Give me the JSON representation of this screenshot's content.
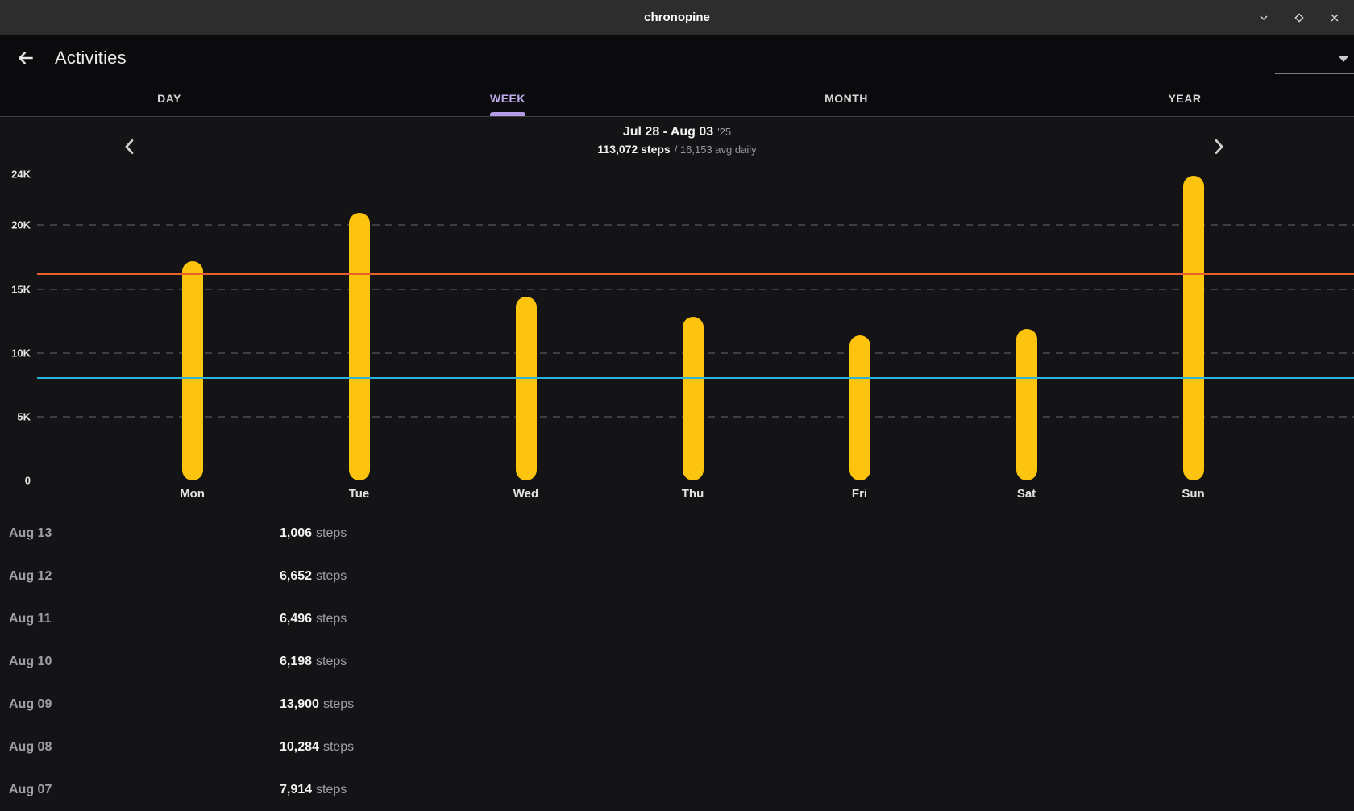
{
  "window": {
    "title": "chronopine"
  },
  "header": {
    "title": "Activities"
  },
  "tabs": [
    {
      "label": "DAY",
      "active": false
    },
    {
      "label": "WEEK",
      "active": true
    },
    {
      "label": "MONTH",
      "active": false
    },
    {
      "label": "YEAR",
      "active": false
    }
  ],
  "period": {
    "date_range": "Jul 28 - Aug 03",
    "year": "'25",
    "total": "113,072 steps",
    "avg": "/ 16,153 avg daily"
  },
  "chart_data": {
    "type": "bar",
    "title": "Jul 28 - Aug 03 '25 steps",
    "categories": [
      "Mon",
      "Tue",
      "Wed",
      "Thu",
      "Fri",
      "Sat",
      "Sun"
    ],
    "values": [
      17200,
      21000,
      14400,
      12800,
      11400,
      11900,
      23900
    ],
    "xlabel": "",
    "ylabel": "steps",
    "ylim": [
      0,
      24000
    ],
    "yticks": [
      {
        "value": 0,
        "label": "0",
        "grid": false
      },
      {
        "value": 5000,
        "label": "5K",
        "grid": true
      },
      {
        "value": 10000,
        "label": "10K",
        "grid": true
      },
      {
        "value": 15000,
        "label": "15K",
        "grid": true
      },
      {
        "value": 20000,
        "label": "20K",
        "grid": true
      },
      {
        "value": 24000,
        "label": "24K",
        "grid": false
      }
    ],
    "grid_style": "horizontal-dashed",
    "legend": "none",
    "bar_color": "#FCC30F",
    "reference_lines": [
      {
        "name": "avg-daily",
        "value": 16153,
        "color": "#E85E2C"
      },
      {
        "name": "goal",
        "value": 8000,
        "color": "#2CB3D9"
      }
    ],
    "total_weekly_steps": 113072,
    "avg_daily_steps": 16153
  },
  "history": [
    {
      "date": "Aug 13",
      "value": "1,006",
      "unit": "steps"
    },
    {
      "date": "Aug 12",
      "value": "6,652",
      "unit": "steps"
    },
    {
      "date": "Aug 11",
      "value": "6,496",
      "unit": "steps"
    },
    {
      "date": "Aug 10",
      "value": "6,198",
      "unit": "steps"
    },
    {
      "date": "Aug 09",
      "value": "13,900",
      "unit": "steps"
    },
    {
      "date": "Aug 08",
      "value": "10,284",
      "unit": "steps"
    },
    {
      "date": "Aug 07",
      "value": "7,914",
      "unit": "steps"
    }
  ],
  "colors": {
    "titlebar_bg": "#2D2D2D",
    "header_bg": "#0B0B0D",
    "content_bg": "#141417",
    "accent_purple": "#B49BE5",
    "bar_yellow": "#FCC30F",
    "avg_line_orange": "#E85E2C",
    "goal_line_blue": "#2CB3D9"
  }
}
